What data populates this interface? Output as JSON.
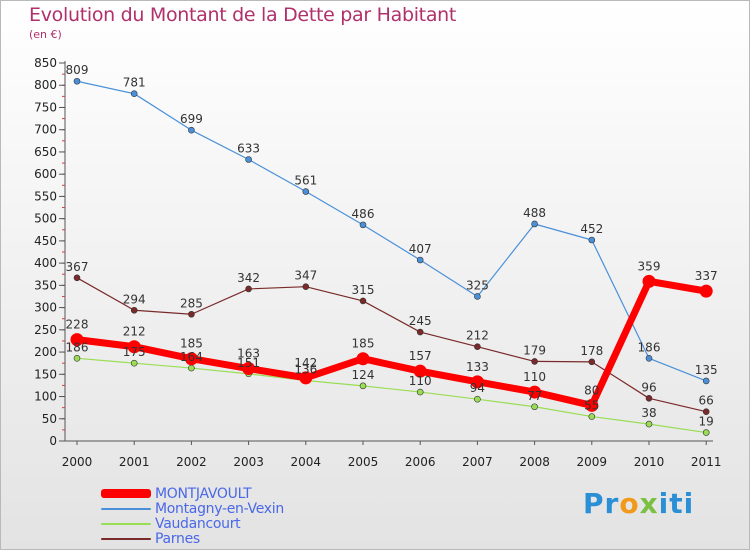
{
  "chart_data": {
    "type": "line",
    "title": "Evolution du Montant de la Dette par Habitant",
    "subtitle": "(en €)",
    "x": [
      "2000",
      "2001",
      "2002",
      "2003",
      "2004",
      "2005",
      "2006",
      "2007",
      "2008",
      "2009",
      "2010",
      "2011"
    ],
    "y_ticks": [
      "0",
      "50",
      "100",
      "150",
      "200",
      "250",
      "300",
      "350",
      "400",
      "450",
      "500",
      "550",
      "600",
      "650",
      "700",
      "750",
      "800",
      "850"
    ],
    "ylim": [
      0,
      850
    ],
    "grid": false,
    "legend_position": "bottom-left",
    "series": [
      {
        "name": "MONTJAVOULT",
        "color": "#ff0000",
        "values": [
          228,
          212,
          185,
          163,
          142,
          185,
          157,
          133,
          110,
          80,
          359,
          337
        ]
      },
      {
        "name": "Montagny-en-Vexin",
        "color": "#4a90d9",
        "values": [
          809,
          781,
          699,
          633,
          561,
          486,
          407,
          325,
          488,
          452,
          186,
          135
        ]
      },
      {
        "name": "Vaudancourt",
        "color": "#99dd55",
        "values": [
          186,
          175,
          164,
          151,
          136,
          124,
          110,
          94,
          77,
          55,
          38,
          19
        ]
      },
      {
        "name": "Parnes",
        "color": "#7a2a2a",
        "values": [
          367,
          294,
          285,
          342,
          347,
          315,
          245,
          212,
          179,
          178,
          96,
          66
        ]
      }
    ]
  },
  "logo": {
    "part1": "Pr",
    "part2": "o",
    "part3": "x",
    "part4": "iti"
  }
}
